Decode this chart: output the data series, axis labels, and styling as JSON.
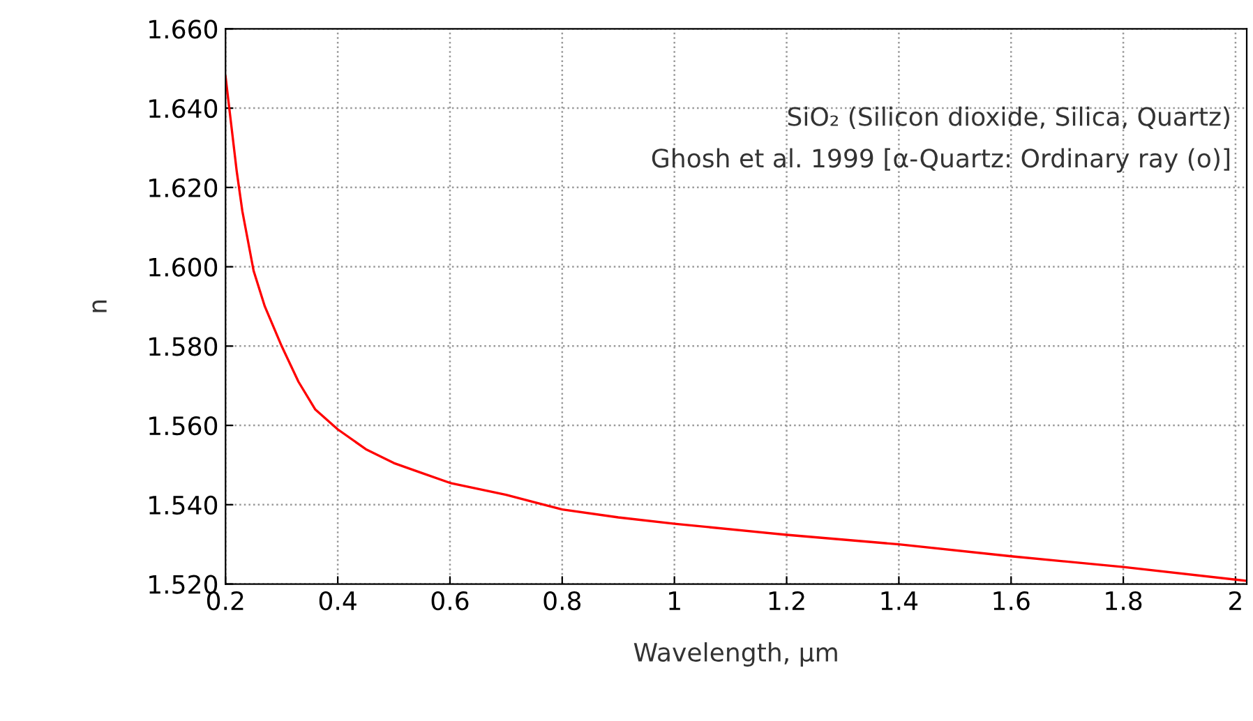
{
  "chart_data": {
    "type": "line",
    "xlabel": "Wavelength, µm",
    "ylabel": "n",
    "annotations": [
      "SiO₂ (Silicon dioxide, Silica, Quartz)",
      "Ghosh et al. 1999 [α-Quartz: Ordinary ray (o)]"
    ],
    "x": [
      0.2,
      0.21,
      0.22,
      0.23,
      0.25,
      0.27,
      0.3,
      0.33,
      0.36,
      0.4,
      0.45,
      0.5,
      0.55,
      0.6,
      0.7,
      0.8,
      0.9,
      1.0,
      1.2,
      1.4,
      1.6,
      1.8,
      2.02
    ],
    "series": [
      {
        "color": "#ff0000",
        "values": [
          1.648,
          1.636,
          1.624,
          1.614,
          1.599,
          1.59,
          1.58,
          1.571,
          1.564,
          1.559,
          1.554,
          1.5505,
          1.548,
          1.5455,
          1.5425,
          1.5388,
          1.5368,
          1.5352,
          1.5324,
          1.53,
          1.527,
          1.5243,
          1.5208
        ]
      }
    ],
    "xlim": [
      0.2,
      2.02
    ],
    "ylim": [
      1.52,
      1.66
    ],
    "xticks": [
      0.2,
      0.4,
      0.6,
      0.8,
      1,
      1.2,
      1.4,
      1.6,
      1.8,
      2
    ],
    "yticks": [
      {
        "value": 1.52,
        "label": "1.520"
      },
      {
        "value": 1.54,
        "label": "1.540"
      },
      {
        "value": 1.56,
        "label": "1.560"
      },
      {
        "value": 1.58,
        "label": "1.580"
      },
      {
        "value": 1.6,
        "label": "1.600"
      },
      {
        "value": 1.62,
        "label": "1.620"
      },
      {
        "value": 1.64,
        "label": "1.640"
      },
      {
        "value": 1.66,
        "label": "1.660"
      }
    ],
    "grid": true,
    "marker": "none",
    "line_style": "solid"
  }
}
